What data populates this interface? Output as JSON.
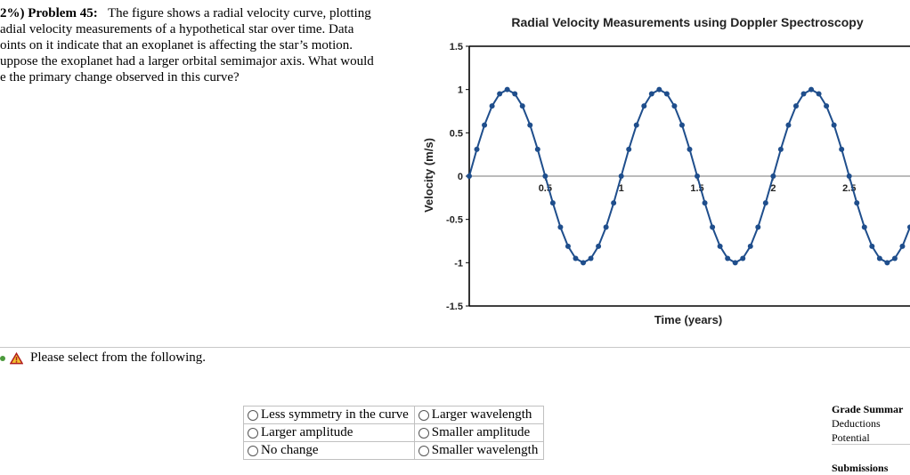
{
  "problem": {
    "number_label": "2%) Problem 45:",
    "lines": [
      "The figure shows a radial velocity curve, plotting",
      "adial velocity measurements of a hypothetical star over time. Data",
      "oints on it indicate that an exoplanet is affecting the star’s motion.",
      "uppose the exoplanet had a larger orbital semimajor axis. What would",
      "e the primary change observed in this curve?"
    ]
  },
  "chart_data": {
    "type": "line",
    "title": "Radial Velocity Measurements using Doppler Spectroscopy",
    "xlabel": "Time (years)",
    "ylabel": "Velocity (m/s)",
    "xlim": [
      0,
      2.9
    ],
    "ylim": [
      -1.5,
      1.5
    ],
    "x_ticks": [
      "0.5",
      "1",
      "1.5",
      "2",
      "2.5"
    ],
    "x_tick_values": [
      0.5,
      1,
      1.5,
      2,
      2.5
    ],
    "y_ticks": [
      "1.5",
      "1",
      "0.5",
      "0",
      "-0.5",
      "-1",
      "-1.5"
    ],
    "y_tick_values": [
      1.5,
      1,
      0.5,
      0,
      -0.5,
      -1,
      -1.5
    ],
    "series": [
      {
        "color": "#1f4e8c",
        "x": [
          0,
          0.05,
          0.1,
          0.15,
          0.2,
          0.25,
          0.3,
          0.35,
          0.4,
          0.45,
          0.5,
          0.55,
          0.6,
          0.65,
          0.7,
          0.75,
          0.8,
          0.85,
          0.9,
          0.95,
          1,
          1.05,
          1.1,
          1.15,
          1.2,
          1.25,
          1.3,
          1.35,
          1.4,
          1.45,
          1.5,
          1.55,
          1.6,
          1.65,
          1.7,
          1.75,
          1.8,
          1.85,
          1.9,
          1.95,
          2,
          2.05,
          2.1,
          2.15,
          2.2,
          2.25,
          2.3,
          2.35,
          2.4,
          2.45,
          2.5,
          2.55,
          2.6,
          2.65,
          2.7,
          2.75,
          2.8,
          2.85,
          2.9
        ],
        "y": [
          0,
          0.31,
          0.59,
          0.81,
          0.95,
          1,
          0.95,
          0.81,
          0.59,
          0.31,
          0,
          -0.31,
          -0.59,
          -0.81,
          -0.95,
          -1,
          -0.95,
          -0.81,
          -0.59,
          -0.31,
          0,
          0.31,
          0.59,
          0.81,
          0.95,
          1,
          0.95,
          0.81,
          0.59,
          0.31,
          0,
          -0.31,
          -0.59,
          -0.81,
          -0.95,
          -1,
          -0.95,
          -0.81,
          -0.59,
          -0.31,
          0,
          0.31,
          0.59,
          0.81,
          0.95,
          1,
          0.95,
          0.81,
          0.59,
          0.31,
          0,
          -0.31,
          -0.59,
          -0.81,
          -0.95,
          -1,
          -0.95,
          -0.81,
          -0.59
        ]
      }
    ],
    "plot_x": [
      0,
      0.05,
      0.1,
      0.15,
      0.2,
      0.25,
      0.3,
      0.35,
      0.4,
      0.45,
      0.5,
      0.55,
      0.6,
      0.65,
      0.7,
      0.75,
      0.8,
      0.85,
      0.9,
      0.95,
      1,
      1.05,
      1.1,
      1.15,
      1.2,
      1.25,
      1.3,
      1.35,
      1.4,
      1.45,
      1.5,
      1.55,
      1.6,
      1.65,
      1.7,
      1.75,
      1.8,
      1.85,
      1.9,
      1.95,
      2,
      2.05,
      2.1,
      2.15,
      2.2,
      2.25,
      2.3,
      2.35,
      2.4,
      2.45,
      2.5,
      2.55,
      2.6,
      2.65,
      2.7,
      2.75,
      2.8,
      2.85,
      2.9
    ],
    "plot_y": [
      0,
      0.31,
      0.59,
      0.81,
      0.95,
      1,
      0.95,
      0.81,
      0.59,
      0.31,
      0,
      -0.31,
      -0.59,
      -0.81,
      -0.95,
      -1,
      -0.95,
      -0.81,
      -0.59,
      -0.31,
      0,
      0.31,
      0.59,
      0.81,
      0.95,
      1,
      0.95,
      0.81,
      0.59,
      0.31,
      0,
      -0.31,
      -0.59,
      -0.81,
      -0.95,
      -1,
      -0.95,
      -0.81,
      -0.59,
      -0.31,
      0,
      0.31,
      0.59,
      0.81,
      0.95,
      1,
      0.95,
      0.81,
      0.59,
      0.31,
      0,
      -0.31,
      -0.59,
      -0.81,
      -0.95,
      -1,
      -0.95,
      -0.81,
      -0.59
    ],
    "grid": false,
    "legend": "none"
  },
  "prompt": {
    "icon": "warning-icon",
    "text": "Please select from the following."
  },
  "options": [
    [
      "Less symmetry in the curve",
      "Larger wavelength"
    ],
    [
      "Larger amplitude",
      "Smaller amplitude"
    ],
    [
      "No change",
      "Smaller wavelength"
    ]
  ],
  "grade": {
    "title": "Grade Summar",
    "deductions_label": "Deductions",
    "potential_label": "Potential",
    "submissions_label": "Submissions"
  }
}
